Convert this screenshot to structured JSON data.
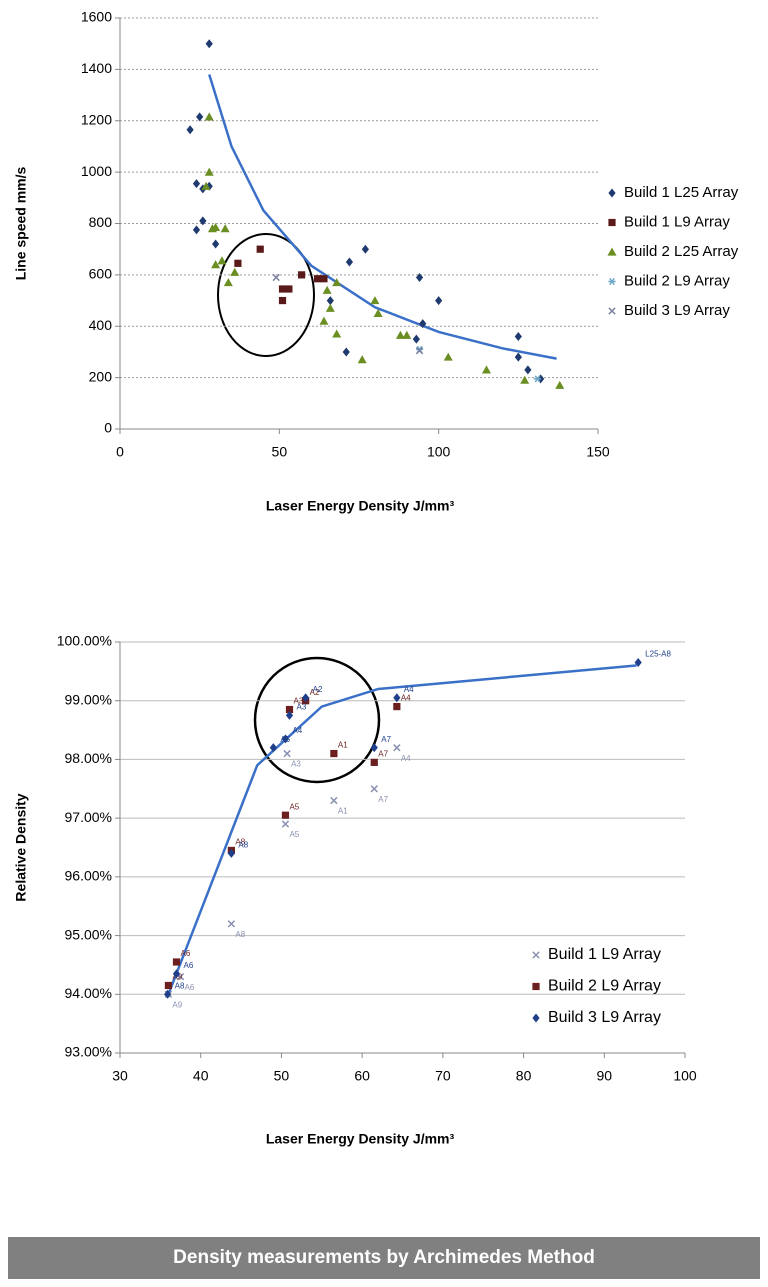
{
  "chart_data": [
    {
      "type": "scatter",
      "x_label": "Laser Energy Density J/mm³",
      "y_label": "Line speed mm/s",
      "xlim": [
        0,
        150
      ],
      "xticks": [
        0,
        50,
        100,
        150
      ],
      "ylim": [
        0,
        1600
      ],
      "yticks": [
        0,
        200,
        400,
        600,
        800,
        1000,
        1200,
        1400,
        1600
      ],
      "grid": true,
      "series": [
        {
          "name": "Build 1 L25 Array",
          "color": "#1f3a6e",
          "marker": "diamond",
          "x": [
            28,
            22,
            25,
            24,
            26,
            28,
            24,
            26,
            30,
            72,
            77,
            94,
            100,
            95,
            66,
            71,
            93,
            125,
            125,
            128,
            132
          ],
          "values": [
            1500,
            1165,
            1215,
            955,
            935,
            945,
            775,
            810,
            720,
            650,
            700,
            590,
            500,
            410,
            500,
            300,
            350,
            360,
            280,
            230,
            195
          ]
        },
        {
          "name": "Build 1 L9 Array",
          "color": "#5a1a1a",
          "marker": "square",
          "x": [
            44,
            37,
            51,
            53,
            57,
            62,
            64,
            51
          ],
          "values": [
            700,
            645,
            545,
            545,
            600,
            585,
            585,
            500
          ]
        },
        {
          "name": "Build 2 L25 Array",
          "color": "#6b8e23",
          "marker": "triangle",
          "x": [
            28,
            28,
            29,
            30,
            27,
            33,
            30,
            32,
            34,
            36,
            65,
            66,
            64,
            68,
            68,
            80,
            81,
            76,
            88,
            90,
            103,
            115,
            127,
            138
          ],
          "values": [
            1215,
            1000,
            780,
            785,
            945,
            780,
            640,
            655,
            570,
            610,
            540,
            470,
            420,
            570,
            370,
            500,
            450,
            270,
            365,
            365,
            280,
            230,
            190,
            170
          ]
        },
        {
          "name": "Build 2 L9 Array",
          "color": "#6fa8c8",
          "marker": "asterisk",
          "x": [
            94,
            131
          ],
          "values": [
            310,
            195
          ]
        },
        {
          "name": "Build 3 L9 Array",
          "color": "#7a7fa0",
          "marker": "x",
          "x": [
            49,
            94
          ],
          "values": [
            590,
            305
          ]
        }
      ],
      "trendline": {
        "color": "#3a70c8",
        "x": [
          28,
          35,
          45,
          60,
          80,
          100,
          120,
          137
        ],
        "values": [
          1380,
          1100,
          851,
          636,
          474,
          378,
          314,
          274
        ]
      }
    },
    {
      "type": "scatter",
      "x_label": "Laser Energy Density J/mm³",
      "y_label": "Relative Density",
      "xlim": [
        30,
        100
      ],
      "xticks": [
        30,
        40,
        50,
        60,
        70,
        80,
        90,
        100
      ],
      "ylim": [
        93,
        100
      ],
      "yticks": [
        {
          "value": 93,
          "label": "93.00%"
        },
        {
          "value": 94,
          "label": "94.00%"
        },
        {
          "value": 95,
          "label": "95.00%"
        },
        {
          "value": 96,
          "label": "96.00%"
        },
        {
          "value": 97,
          "label": "97.00%"
        },
        {
          "value": 98,
          "label": "98.00%"
        },
        {
          "value": 99,
          "label": "99.00%"
        },
        {
          "value": 100,
          "label": "100.00%"
        }
      ],
      "grid": true,
      "series": [
        {
          "name": "Build 1 L9 Array",
          "color": "#8a90b0",
          "marker": "x",
          "x": [
            36,
            37.5,
            43.8,
            50.7,
            50.5,
            56.5,
            61.5,
            64.3
          ],
          "values": [
            94,
            94.3,
            95.2,
            98.1,
            96.9,
            97.3,
            97.5,
            98.2
          ],
          "labels": [
            "A9",
            "A6",
            "A8",
            "A3",
            "A5",
            "A1",
            "A7",
            "A4"
          ]
        },
        {
          "name": "Build 2 L9 Array",
          "color": "#6b1f1f",
          "marker": "square",
          "x": [
            36,
            37,
            43.8,
            50.5,
            51,
            53,
            56.5,
            61.5,
            64.3
          ],
          "values": [
            94.15,
            94.55,
            96.45,
            97.05,
            98.85,
            99,
            98.1,
            97.95,
            98.9
          ],
          "labels": [
            "A9",
            "A6",
            "A8",
            "A5",
            "A3",
            "A2",
            "A1",
            "A7",
            "A4"
          ]
        },
        {
          "name": "Build 3 L9 Array",
          "color": "#1f3f8a",
          "marker": "diamond",
          "x": [
            35.9,
            37,
            43.8,
            49,
            50.5,
            51,
            53,
            61.5,
            64.3,
            94.2
          ],
          "values": [
            94,
            94.35,
            96.4,
            98.2,
            98.35,
            98.75,
            99.05,
            98.2,
            99.05,
            99.65
          ],
          "labels": [
            "A8",
            "A6",
            "A8",
            "A5",
            "A4",
            "A3",
            "A2",
            "A7",
            "A4",
            "L25-A8"
          ]
        }
      ],
      "trendline": {
        "color": "#3a70c8",
        "x": [
          36,
          47,
          55,
          62,
          94
        ],
        "values": [
          94,
          97.9,
          98.9,
          99.2,
          99.6
        ]
      }
    }
  ],
  "caption": "Density measurements by Archimedes Method"
}
